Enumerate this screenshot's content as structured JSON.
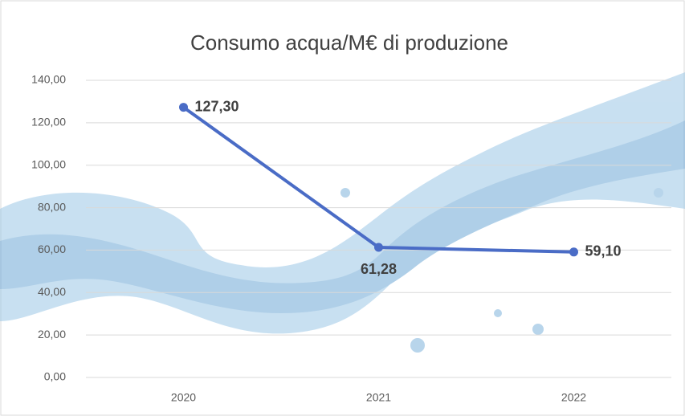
{
  "chart_data": {
    "type": "line",
    "title": "Consumo acqua/M€ di produzione",
    "categories": [
      "2020",
      "2021",
      "2022"
    ],
    "values": [
      127.3,
      61.28,
      59.1
    ],
    "value_labels": [
      "127,30",
      "61,28",
      "59,10"
    ],
    "color": "#4a6cc6",
    "ylim": [
      0,
      140
    ],
    "yticks": [
      {
        "value": 0,
        "label": "0,00"
      },
      {
        "value": 20,
        "label": "20,00"
      },
      {
        "value": 40,
        "label": "40,00"
      },
      {
        "value": 60,
        "label": "60,00"
      },
      {
        "value": 80,
        "label": "80,00"
      },
      {
        "value": 100,
        "label": "100,00"
      },
      {
        "value": 120,
        "label": "120,00"
      },
      {
        "value": 140,
        "label": "140,00"
      }
    ],
    "grid": true
  }
}
